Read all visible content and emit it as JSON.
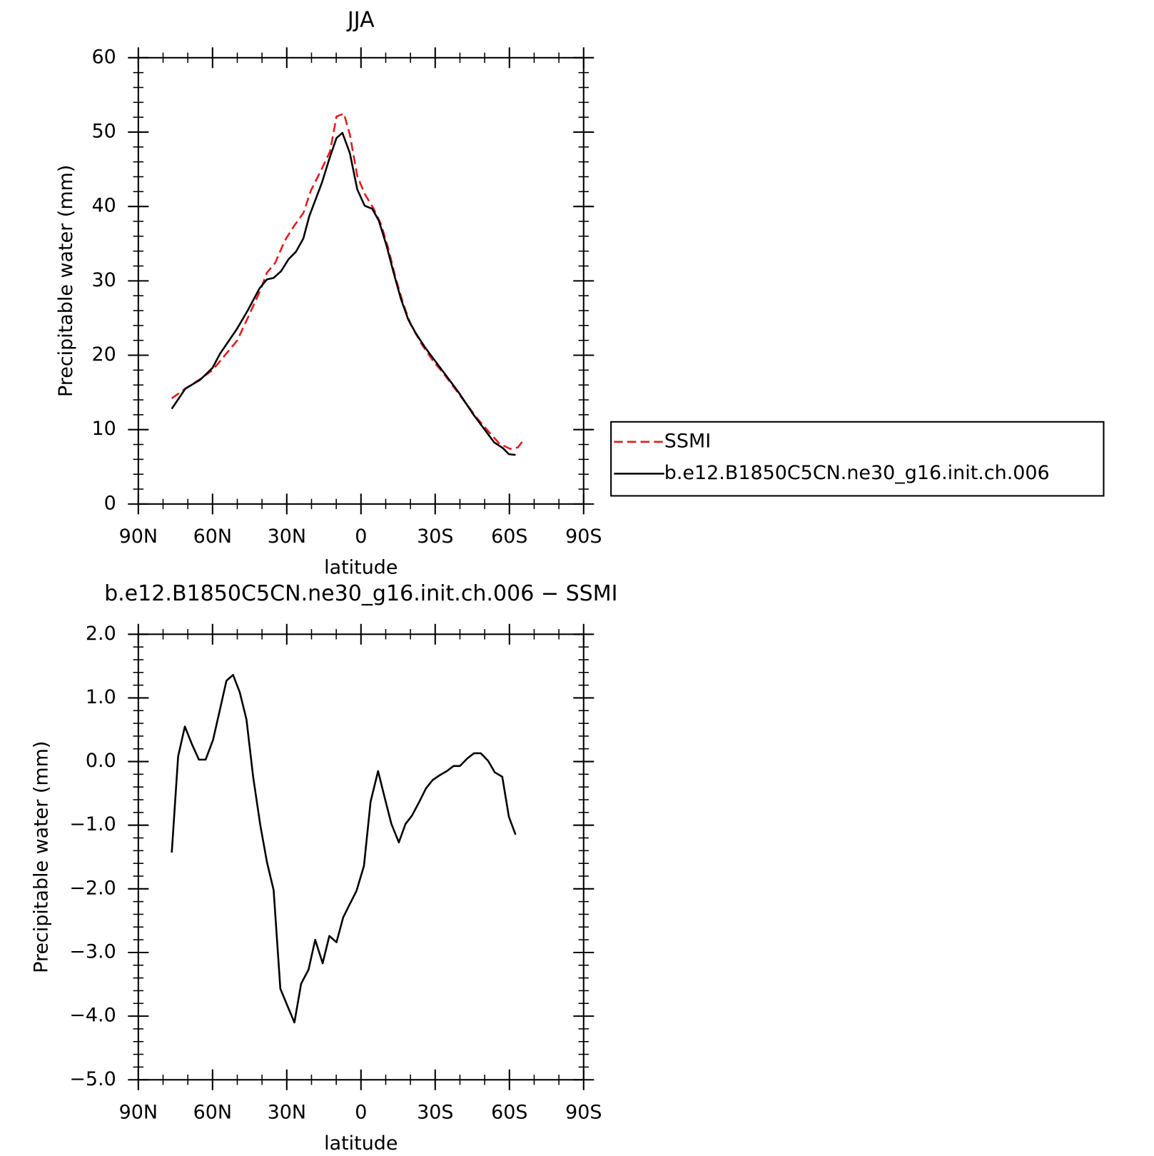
{
  "chart_data": [
    {
      "type": "line",
      "title": "JJA",
      "xlabel": "latitude",
      "ylabel": "Precipitable water (mm)",
      "xlim": [
        90,
        -90
      ],
      "xticks": [
        {
          "value": 90,
          "label": "90N"
        },
        {
          "value": 60,
          "label": "60N"
        },
        {
          "value": 30,
          "label": "30N"
        },
        0,
        {
          "value": -30,
          "label": "30S"
        },
        {
          "value": -60,
          "label": "60S"
        },
        {
          "value": -90,
          "label": "90S"
        }
      ],
      "ylim": [
        0,
        60
      ],
      "yticks": [
        0,
        10,
        20,
        30,
        40,
        50,
        60
      ],
      "legend": "right",
      "series": [
        {
          "name": "SSMI",
          "color": "#e41a1c",
          "linestyle": "dashed",
          "x": [
            76.5,
            71,
            65,
            60,
            55,
            50,
            45.8,
            41,
            38,
            34.7,
            30.8,
            27,
            23.3,
            20.3,
            15.8,
            12.5,
            9.9,
            6.9,
            4.5,
            1.5,
            -1.5,
            -5.1,
            -8.1,
            -11,
            -14,
            -17,
            -20,
            -24.5,
            -29,
            -33.5,
            -38,
            -42.5,
            -47,
            -51.4,
            -56,
            -60.4,
            -63.4,
            -65.5
          ],
          "values": [
            14.2,
            15.5,
            16.8,
            18.0,
            20.0,
            22.0,
            25.0,
            28.5,
            31.1,
            32.4,
            35.4,
            37.4,
            39.1,
            42.1,
            45.1,
            47.4,
            52.1,
            52.5,
            49.7,
            44.1,
            41.7,
            39.7,
            37.6,
            34.4,
            30.4,
            27.0,
            24.2,
            21.5,
            19.3,
            17.5,
            15.5,
            13.5,
            11.5,
            9.8,
            8.1,
            7.4,
            7.6,
            8.5
          ]
        },
        {
          "name": "b.e12.B1850C5CN.ne30_g16.init.ch.006",
          "color": "#000000",
          "linestyle": "solid",
          "x": [
            76.5,
            71,
            65,
            60,
            57,
            50.2,
            45.8,
            41,
            38,
            35.3,
            32.3,
            29.3,
            26.3,
            23.3,
            20.9,
            15.8,
            12.8,
            9.9,
            7.5,
            4.5,
            1.5,
            -1.5,
            -4.5,
            -7.2,
            -10.2,
            -13.2,
            -16.2,
            -19.1,
            -22.1,
            -26,
            -30.5,
            -35,
            -39.5,
            -45.5,
            -50,
            -53.8,
            -57.4,
            -59.8,
            -62.5
          ],
          "values": [
            12.8,
            15.5,
            16.7,
            18.3,
            20.2,
            23.5,
            26.0,
            29.0,
            30.2,
            30.4,
            31.3,
            32.9,
            33.9,
            35.7,
            38.7,
            43.2,
            46.4,
            49.2,
            49.9,
            47.2,
            42.3,
            40.1,
            39.7,
            38.1,
            34.9,
            31.1,
            27.5,
            24.8,
            23.0,
            21.0,
            19.0,
            17.0,
            15.0,
            12.0,
            10.0,
            8.3,
            7.5,
            6.7,
            6.6
          ]
        }
      ]
    },
    {
      "type": "line",
      "title": "b.e12.B1850C5CN.ne30_g16.init.ch.006 − SSMI",
      "xlabel": "latitude",
      "ylabel": "Precipitable water (mm)",
      "xlim": [
        90,
        -90
      ],
      "xticks": [
        {
          "value": 90,
          "label": "90N"
        },
        {
          "value": 60,
          "label": "60N"
        },
        {
          "value": 30,
          "label": "30N"
        },
        0,
        {
          "value": -30,
          "label": "30S"
        },
        {
          "value": -60,
          "label": "60S"
        },
        {
          "value": -90,
          "label": "90S"
        }
      ],
      "ylim": [
        -5,
        2
      ],
      "yticks": [
        {
          "value": -5,
          "label": "−5.0"
        },
        {
          "value": -4,
          "label": "−4.0"
        },
        {
          "value": -3,
          "label": "−3.0"
        },
        {
          "value": -2,
          "label": "−2.0"
        },
        {
          "value": -1,
          "label": "−1.0"
        },
        {
          "value": 0,
          "label": "0.0"
        },
        {
          "value": 1,
          "label": "1.0"
        },
        {
          "value": 2,
          "label": "2.0"
        }
      ],
      "series": [
        {
          "color": "#000000",
          "linestyle": "solid",
          "x": [
            76.5,
            73.9,
            71.2,
            68.2,
            65.5,
            62.8,
            59.8,
            57.1,
            54.4,
            51.7,
            49,
            46.3,
            43.6,
            40.7,
            38,
            35.3,
            32.6,
            29.6,
            26.9,
            24.2,
            21.2,
            18.5,
            15.5,
            12.8,
            9.9,
            7.2,
            4.5,
            1.8,
            -1.2,
            -3.9,
            -6.9,
            -9.6,
            -12.3,
            -15.3,
            -18,
            -20.6,
            -23.6,
            -26.3,
            -29,
            -32,
            -34.7,
            -37.4,
            -40,
            -43,
            -45.7,
            -48.4,
            -51.4,
            -54.1,
            -57.1,
            -59.8,
            -62.5
          ],
          "values": [
            -1.43,
            0.08,
            0.55,
            0.26,
            0.03,
            0.03,
            0.34,
            0.8,
            1.27,
            1.36,
            1.09,
            0.66,
            -0.24,
            -1.0,
            -1.58,
            -2.02,
            -3.57,
            -3.85,
            -4.1,
            -3.49,
            -3.27,
            -2.8,
            -3.17,
            -2.74,
            -2.84,
            -2.45,
            -2.24,
            -2.03,
            -1.64,
            -0.63,
            -0.15,
            -0.57,
            -0.98,
            -1.27,
            -0.98,
            -0.85,
            -0.63,
            -0.42,
            -0.29,
            -0.21,
            -0.15,
            -0.07,
            -0.07,
            0.05,
            0.13,
            0.13,
            0.01,
            -0.17,
            -0.24,
            -0.87,
            -1.15
          ]
        }
      ]
    }
  ]
}
